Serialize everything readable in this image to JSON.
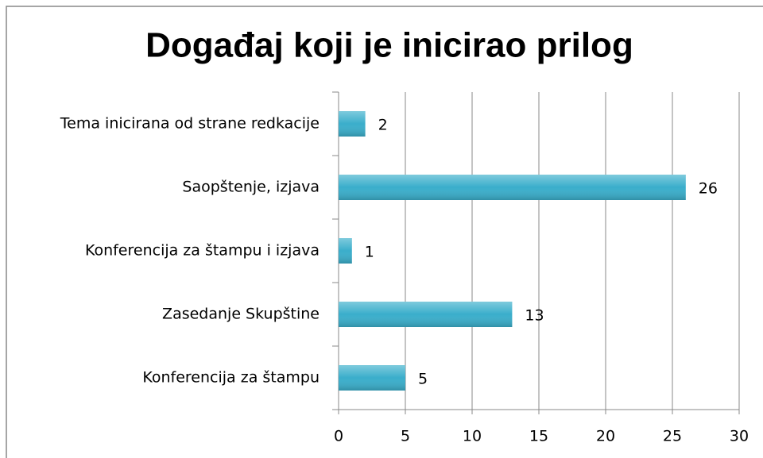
{
  "chart_data": {
    "type": "bar",
    "orientation": "horizontal",
    "title": "Događaj koji je inicirao prilog",
    "categories": [
      "Tema inicirana od strane redkacije",
      "Saopštenje, izjava",
      "Konferencija za štampu i izjava",
      "Zasedanje Skupštine",
      "Konferencija za štampu"
    ],
    "values": [
      2,
      26,
      1,
      13,
      5
    ],
    "color": "#3aaecb",
    "xlim": [
      0,
      30
    ],
    "xticks": [
      0,
      5,
      10,
      15,
      20,
      25,
      30
    ],
    "grid": true
  }
}
